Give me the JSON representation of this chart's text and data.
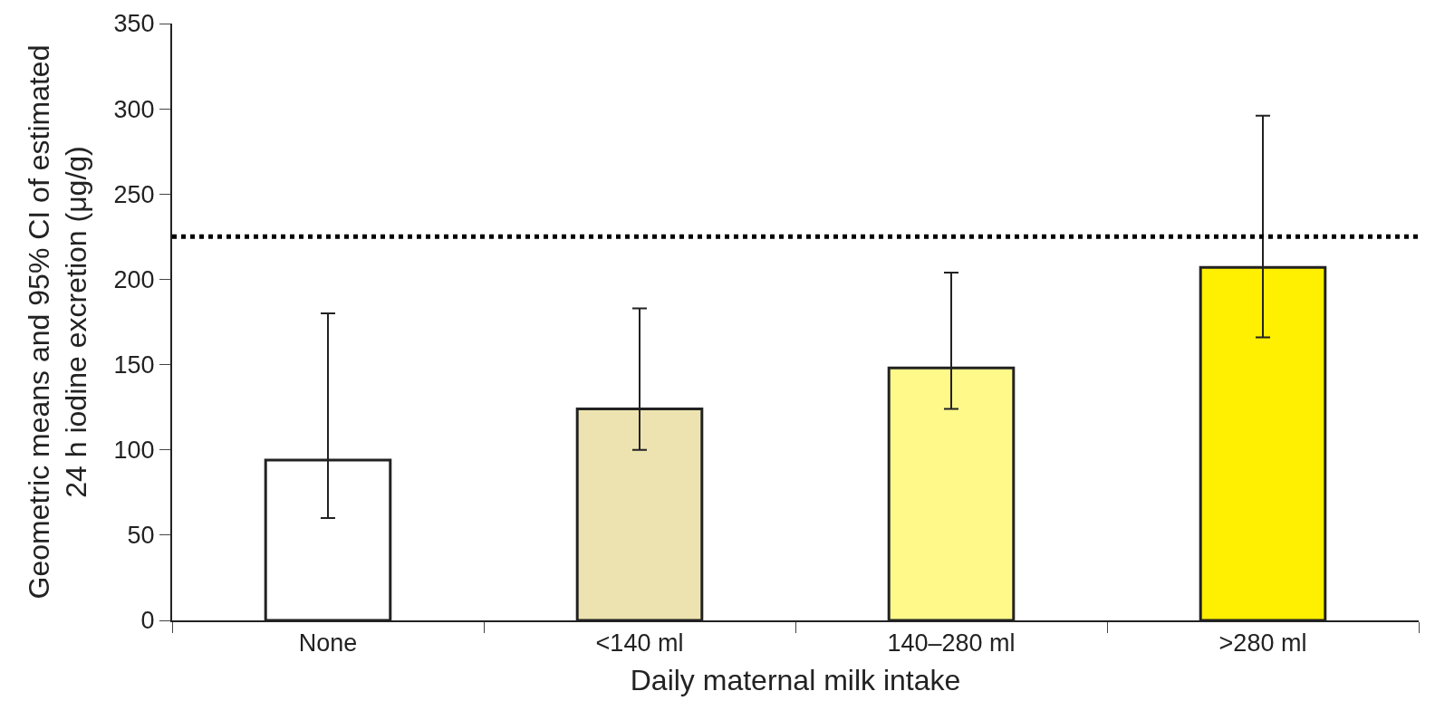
{
  "chart_data": {
    "type": "bar",
    "xlabel": "Daily maternal milk intake",
    "ylabel": "Geometric means and 95% CI of estimated\n24 h iodine excretion (μg/g)",
    "categories": [
      "None",
      "<140 ml",
      "140–280 ml",
      ">280 ml"
    ],
    "values": [
      94,
      124,
      148,
      207
    ],
    "colors": [
      "#ffffff",
      "#ede3b0",
      "#fff98a",
      "#ffef00"
    ],
    "errors": [
      [
        60,
        180
      ],
      [
        100,
        183
      ],
      [
        124,
        204
      ],
      [
        166,
        296
      ]
    ],
    "ylim": [
      0,
      350
    ],
    "yticks": [
      0,
      50,
      100,
      150,
      200,
      250,
      300,
      350
    ],
    "ref_lines": [
      {
        "axis": "y",
        "value": 225,
        "color": "#000000",
        "line_style": "dotted"
      }
    ]
  }
}
